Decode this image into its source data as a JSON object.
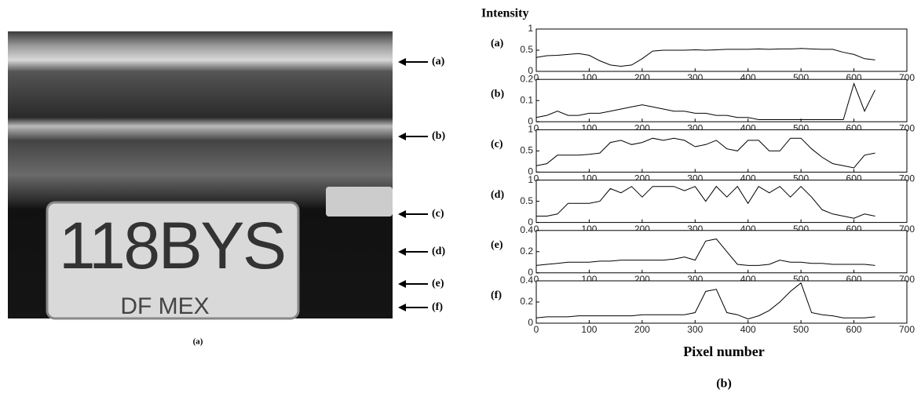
{
  "figure": {
    "image_caption": "(a)",
    "plot_caption": "(b)",
    "y_label": "Intensity",
    "x_label": "Pixel number",
    "arrow_labels": [
      "(a)",
      "(b)",
      "(c)",
      "(d)",
      "(e)",
      "(f)"
    ],
    "plate_text": "118BYS",
    "plate_region": "DF MEX"
  },
  "chart_data": [
    {
      "type": "line",
      "title": "(a)",
      "color": "#000000",
      "xlim": [
        0,
        700
      ],
      "xticks": [
        0,
        100,
        200,
        300,
        400,
        500,
        600,
        700
      ],
      "ylim": [
        0,
        1
      ],
      "yticks": [
        0,
        0.5,
        1
      ],
      "x": [
        0,
        20,
        40,
        60,
        80,
        100,
        120,
        140,
        160,
        180,
        200,
        220,
        240,
        260,
        280,
        300,
        320,
        340,
        360,
        380,
        400,
        420,
        440,
        460,
        480,
        500,
        520,
        540,
        560,
        580,
        600,
        620,
        640
      ],
      "values": [
        0.33,
        0.37,
        0.38,
        0.4,
        0.42,
        0.38,
        0.25,
        0.15,
        0.12,
        0.15,
        0.3,
        0.48,
        0.5,
        0.5,
        0.5,
        0.51,
        0.5,
        0.51,
        0.52,
        0.52,
        0.52,
        0.53,
        0.52,
        0.53,
        0.53,
        0.54,
        0.53,
        0.52,
        0.52,
        0.45,
        0.4,
        0.3,
        0.27
      ]
    },
    {
      "type": "line",
      "title": "(b)",
      "color": "#000000",
      "xlim": [
        0,
        700
      ],
      "xticks": [
        0,
        100,
        200,
        300,
        400,
        500,
        600,
        700
      ],
      "ylim": [
        0,
        0.2
      ],
      "yticks": [
        0,
        0.1,
        0.2
      ],
      "x": [
        0,
        20,
        40,
        60,
        80,
        100,
        120,
        140,
        160,
        180,
        200,
        220,
        240,
        260,
        280,
        300,
        320,
        340,
        360,
        380,
        400,
        420,
        440,
        460,
        480,
        500,
        520,
        540,
        560,
        580,
        600,
        620,
        640
      ],
      "values": [
        0.02,
        0.03,
        0.05,
        0.03,
        0.03,
        0.04,
        0.04,
        0.05,
        0.06,
        0.07,
        0.08,
        0.07,
        0.06,
        0.05,
        0.05,
        0.04,
        0.04,
        0.03,
        0.03,
        0.02,
        0.02,
        0.01,
        0.01,
        0.01,
        0.01,
        0.01,
        0.01,
        0.01,
        0.01,
        0.01,
        0.18,
        0.05,
        0.15
      ]
    },
    {
      "type": "line",
      "title": "(c)",
      "color": "#000000",
      "xlim": [
        0,
        700
      ],
      "xticks": [
        0,
        100,
        200,
        300,
        400,
        500,
        600,
        700
      ],
      "ylim": [
        0,
        1
      ],
      "yticks": [
        0,
        0.5,
        1
      ],
      "x": [
        0,
        20,
        40,
        60,
        80,
        100,
        120,
        140,
        160,
        180,
        200,
        220,
        240,
        260,
        280,
        300,
        320,
        340,
        360,
        380,
        400,
        420,
        440,
        460,
        480,
        500,
        520,
        540,
        560,
        580,
        600,
        620,
        640
      ],
      "values": [
        0.15,
        0.2,
        0.4,
        0.4,
        0.4,
        0.42,
        0.45,
        0.7,
        0.75,
        0.65,
        0.7,
        0.8,
        0.75,
        0.8,
        0.75,
        0.6,
        0.65,
        0.75,
        0.55,
        0.5,
        0.75,
        0.75,
        0.5,
        0.5,
        0.8,
        0.8,
        0.55,
        0.35,
        0.2,
        0.15,
        0.1,
        0.4,
        0.45
      ]
    },
    {
      "type": "line",
      "title": "(d)",
      "color": "#000000",
      "xlim": [
        0,
        700
      ],
      "xticks": [
        0,
        100,
        200,
        300,
        400,
        500,
        600,
        700
      ],
      "ylim": [
        0,
        1
      ],
      "yticks": [
        0,
        0.5,
        1
      ],
      "x": [
        0,
        20,
        40,
        60,
        80,
        100,
        120,
        140,
        160,
        180,
        200,
        220,
        240,
        260,
        280,
        300,
        320,
        340,
        360,
        380,
        400,
        420,
        440,
        460,
        480,
        500,
        520,
        540,
        560,
        580,
        600,
        620,
        640
      ],
      "values": [
        0.15,
        0.15,
        0.2,
        0.45,
        0.45,
        0.45,
        0.5,
        0.8,
        0.7,
        0.85,
        0.6,
        0.85,
        0.85,
        0.85,
        0.75,
        0.85,
        0.5,
        0.85,
        0.6,
        0.85,
        0.45,
        0.85,
        0.7,
        0.85,
        0.6,
        0.85,
        0.6,
        0.3,
        0.2,
        0.15,
        0.1,
        0.2,
        0.15
      ]
    },
    {
      "type": "line",
      "title": "(e)",
      "color": "#000000",
      "xlim": [
        0,
        700
      ],
      "xticks": [
        0,
        100,
        200,
        300,
        400,
        500,
        600,
        700
      ],
      "ylim": [
        0,
        0.4
      ],
      "yticks": [
        0,
        0.2,
        0.4
      ],
      "x": [
        0,
        20,
        40,
        60,
        80,
        100,
        120,
        140,
        160,
        180,
        200,
        220,
        240,
        260,
        280,
        300,
        320,
        340,
        360,
        380,
        400,
        420,
        440,
        460,
        480,
        500,
        520,
        540,
        560,
        580,
        600,
        620,
        640
      ],
      "values": [
        0.07,
        0.08,
        0.09,
        0.1,
        0.1,
        0.1,
        0.11,
        0.11,
        0.12,
        0.12,
        0.12,
        0.12,
        0.12,
        0.13,
        0.15,
        0.12,
        0.3,
        0.32,
        0.2,
        0.08,
        0.07,
        0.07,
        0.08,
        0.12,
        0.1,
        0.1,
        0.09,
        0.09,
        0.08,
        0.08,
        0.08,
        0.08,
        0.07
      ]
    },
    {
      "type": "line",
      "title": "(f)",
      "color": "#000000",
      "xlim": [
        0,
        700
      ],
      "xticks": [
        0,
        100,
        200,
        300,
        400,
        500,
        600,
        700
      ],
      "ylim": [
        0,
        0.4
      ],
      "yticks": [
        0,
        0.2,
        0.4
      ],
      "x": [
        0,
        20,
        40,
        60,
        80,
        100,
        120,
        140,
        160,
        180,
        200,
        220,
        240,
        260,
        280,
        300,
        320,
        340,
        360,
        380,
        400,
        420,
        440,
        460,
        480,
        500,
        520,
        540,
        560,
        580,
        600,
        620,
        640
      ],
      "values": [
        0.05,
        0.06,
        0.06,
        0.06,
        0.07,
        0.07,
        0.07,
        0.07,
        0.07,
        0.07,
        0.08,
        0.08,
        0.08,
        0.08,
        0.08,
        0.1,
        0.3,
        0.32,
        0.1,
        0.08,
        0.04,
        0.07,
        0.12,
        0.2,
        0.3,
        0.38,
        0.1,
        0.08,
        0.07,
        0.05,
        0.05,
        0.05,
        0.06
      ]
    }
  ]
}
